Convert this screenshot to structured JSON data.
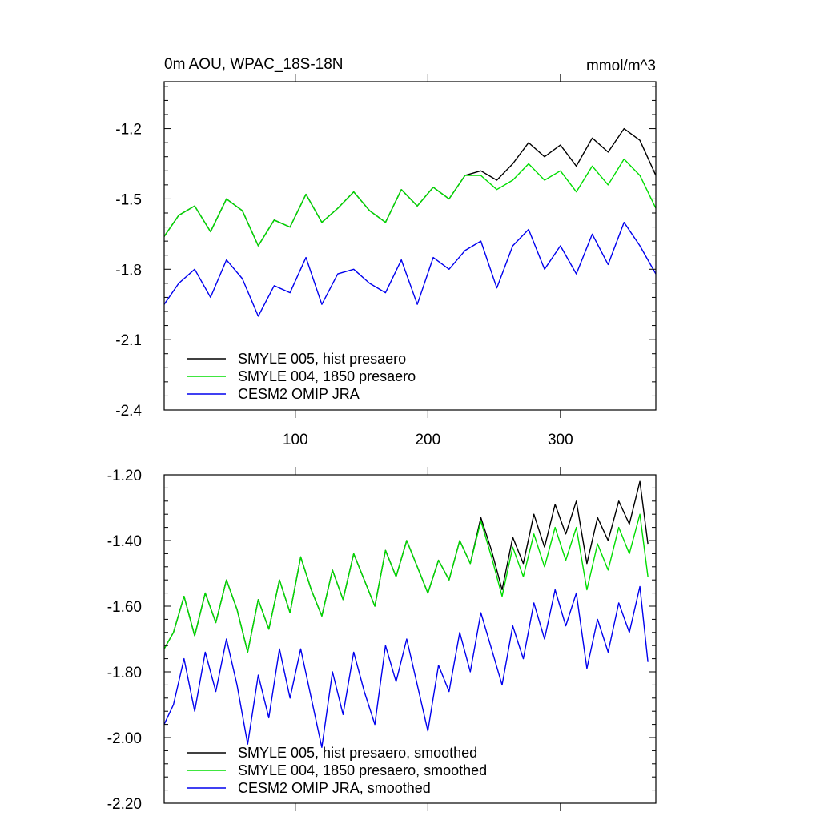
{
  "chart_data": [
    {
      "type": "line",
      "title": "0m AOU, WPAC_18S-18N",
      "units": "mmol/m^3",
      "xlabel": "",
      "ylabel": "",
      "xlim": [
        1,
        372
      ],
      "ylim": [
        -2.4,
        -1.0
      ],
      "xticks": [
        100,
        200,
        300
      ],
      "xtick_labels": [
        "100",
        "200",
        "300"
      ],
      "yticks": [
        -2.4,
        -2.1,
        -1.8,
        -1.5,
        -1.2
      ],
      "ytick_labels": [
        "-2.4",
        "-2.1",
        "-1.8",
        "-1.5",
        "-1.2"
      ],
      "legend_position": "bottom-left",
      "series": [
        {
          "name": "SMYLE 005, hist presaero",
          "color": "#000000",
          "x": [
            1,
            12,
            24,
            36,
            48,
            60,
            72,
            84,
            96,
            108,
            120,
            132,
            144,
            156,
            168,
            180,
            192,
            204,
            216,
            228,
            240,
            252,
            264,
            276,
            288,
            300,
            312,
            324,
            336,
            348,
            360,
            372
          ],
          "values": [
            -1.66,
            -1.57,
            -1.53,
            -1.64,
            -1.5,
            -1.55,
            -1.7,
            -1.59,
            -1.62,
            -1.48,
            -1.6,
            -1.54,
            -1.47,
            -1.55,
            -1.6,
            -1.46,
            -1.53,
            -1.45,
            -1.5,
            -1.4,
            -1.38,
            -1.42,
            -1.35,
            -1.26,
            -1.32,
            -1.27,
            -1.36,
            -1.24,
            -1.3,
            -1.2,
            -1.25,
            -1.4
          ]
        },
        {
          "name": "SMYLE 004, 1850 presaero",
          "color": "#00dd00",
          "x": [
            1,
            12,
            24,
            36,
            48,
            60,
            72,
            84,
            96,
            108,
            120,
            132,
            144,
            156,
            168,
            180,
            192,
            204,
            216,
            228,
            240,
            252,
            264,
            276,
            288,
            300,
            312,
            324,
            336,
            348,
            360,
            372
          ],
          "values": [
            -1.66,
            -1.57,
            -1.53,
            -1.64,
            -1.5,
            -1.55,
            -1.7,
            -1.59,
            -1.62,
            -1.48,
            -1.6,
            -1.54,
            -1.47,
            -1.55,
            -1.6,
            -1.46,
            -1.53,
            -1.45,
            -1.5,
            -1.4,
            -1.4,
            -1.46,
            -1.42,
            -1.35,
            -1.42,
            -1.38,
            -1.47,
            -1.36,
            -1.44,
            -1.33,
            -1.4,
            -1.54
          ]
        },
        {
          "name": "CESM2 OMIP JRA",
          "color": "#0000ee",
          "x": [
            1,
            12,
            24,
            36,
            48,
            60,
            72,
            84,
            96,
            108,
            120,
            132,
            144,
            156,
            168,
            180,
            192,
            204,
            216,
            228,
            240,
            252,
            264,
            276,
            288,
            300,
            312,
            324,
            336,
            348,
            360,
            372
          ],
          "values": [
            -1.95,
            -1.86,
            -1.8,
            -1.92,
            -1.76,
            -1.84,
            -2.0,
            -1.87,
            -1.9,
            -1.75,
            -1.95,
            -1.82,
            -1.8,
            -1.86,
            -1.9,
            -1.76,
            -1.95,
            -1.75,
            -1.8,
            -1.72,
            -1.68,
            -1.88,
            -1.7,
            -1.63,
            -1.8,
            -1.7,
            -1.82,
            -1.65,
            -1.78,
            -1.6,
            -1.7,
            -1.82
          ]
        }
      ]
    },
    {
      "type": "line",
      "title": "",
      "xlabel": "",
      "ylabel": "",
      "xlim": [
        1,
        372
      ],
      "ylim": [
        -2.2,
        -1.2
      ],
      "xticks": [
        100,
        200,
        300
      ],
      "xtick_labels": [
        "",
        "",
        ""
      ],
      "yticks": [
        -2.2,
        -2.0,
        -1.8,
        -1.6,
        -1.4,
        -1.2
      ],
      "ytick_labels": [
        "-2.20",
        "-2.00",
        "-1.80",
        "-1.60",
        "-1.40",
        "-1.20"
      ],
      "legend_position": "bottom-left",
      "series": [
        {
          "name": "SMYLE 005, hist presaero, smoothed",
          "color": "#000000",
          "x": [
            1,
            8,
            16,
            24,
            32,
            40,
            48,
            56,
            64,
            72,
            80,
            88,
            96,
            104,
            112,
            120,
            128,
            136,
            144,
            152,
            160,
            168,
            176,
            184,
            192,
            200,
            208,
            216,
            224,
            232,
            240,
            248,
            256,
            264,
            272,
            280,
            288,
            296,
            304,
            312,
            320,
            328,
            336,
            344,
            352,
            360,
            366
          ],
          "values": [
            -1.73,
            -1.68,
            -1.57,
            -1.69,
            -1.56,
            -1.65,
            -1.52,
            -1.61,
            -1.74,
            -1.58,
            -1.67,
            -1.52,
            -1.62,
            -1.45,
            -1.55,
            -1.63,
            -1.49,
            -1.58,
            -1.44,
            -1.52,
            -1.6,
            -1.43,
            -1.51,
            -1.4,
            -1.48,
            -1.56,
            -1.46,
            -1.52,
            -1.4,
            -1.47,
            -1.33,
            -1.43,
            -1.55,
            -1.39,
            -1.47,
            -1.32,
            -1.42,
            -1.29,
            -1.38,
            -1.28,
            -1.47,
            -1.33,
            -1.4,
            -1.28,
            -1.35,
            -1.22,
            -1.41
          ]
        },
        {
          "name": "SMYLE 004, 1850 presaero, smoothed",
          "color": "#00dd00",
          "x": [
            1,
            8,
            16,
            24,
            32,
            40,
            48,
            56,
            64,
            72,
            80,
            88,
            96,
            104,
            112,
            120,
            128,
            136,
            144,
            152,
            160,
            168,
            176,
            184,
            192,
            200,
            208,
            216,
            224,
            232,
            240,
            248,
            256,
            264,
            272,
            280,
            288,
            296,
            304,
            312,
            320,
            328,
            336,
            344,
            352,
            360,
            366
          ],
          "values": [
            -1.73,
            -1.68,
            -1.57,
            -1.69,
            -1.56,
            -1.65,
            -1.52,
            -1.61,
            -1.74,
            -1.58,
            -1.67,
            -1.52,
            -1.62,
            -1.45,
            -1.55,
            -1.63,
            -1.49,
            -1.58,
            -1.44,
            -1.52,
            -1.6,
            -1.43,
            -1.51,
            -1.4,
            -1.48,
            -1.56,
            -1.46,
            -1.52,
            -1.4,
            -1.47,
            -1.34,
            -1.45,
            -1.57,
            -1.42,
            -1.51,
            -1.38,
            -1.48,
            -1.36,
            -1.46,
            -1.36,
            -1.55,
            -1.41,
            -1.49,
            -1.36,
            -1.44,
            -1.32,
            -1.51
          ]
        },
        {
          "name": "CESM2 OMIP JRA, smoothed",
          "color": "#0000ee",
          "x": [
            1,
            8,
            16,
            24,
            32,
            40,
            48,
            56,
            64,
            72,
            80,
            88,
            96,
            104,
            112,
            120,
            128,
            136,
            144,
            152,
            160,
            168,
            176,
            184,
            192,
            200,
            208,
            216,
            224,
            232,
            240,
            248,
            256,
            264,
            272,
            280,
            288,
            296,
            304,
            312,
            320,
            328,
            336,
            344,
            352,
            360,
            366
          ],
          "values": [
            -1.96,
            -1.9,
            -1.76,
            -1.92,
            -1.74,
            -1.86,
            -1.7,
            -1.84,
            -2.02,
            -1.81,
            -1.94,
            -1.73,
            -1.88,
            -1.73,
            -1.88,
            -2.03,
            -1.8,
            -1.93,
            -1.74,
            -1.86,
            -1.96,
            -1.72,
            -1.83,
            -1.7,
            -1.84,
            -1.98,
            -1.78,
            -1.86,
            -1.68,
            -1.8,
            -1.62,
            -1.73,
            -1.84,
            -1.66,
            -1.76,
            -1.59,
            -1.7,
            -1.55,
            -1.66,
            -1.56,
            -1.79,
            -1.64,
            -1.74,
            -1.59,
            -1.68,
            -1.54,
            -1.77
          ]
        }
      ]
    }
  ]
}
